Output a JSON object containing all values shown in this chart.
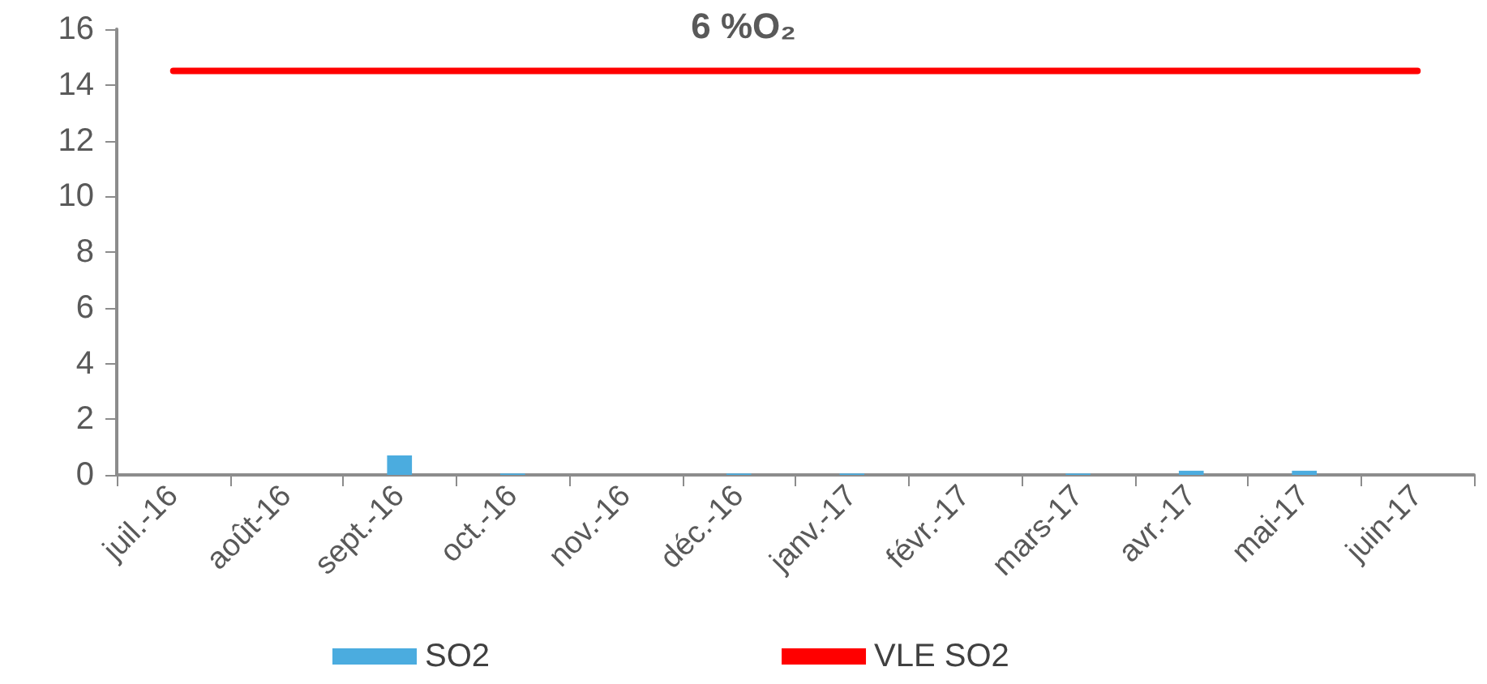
{
  "chart_data": {
    "type": "bar",
    "title": "6 %O₂",
    "categories": [
      "juil.-16",
      "août-16",
      "sept.-16",
      "oct.-16",
      "nov.-16",
      "déc.-16",
      "janv.-17",
      "févr.-17",
      "mars-17",
      "avr.-17",
      "mai-17",
      "juin-17"
    ],
    "series": [
      {
        "name": "SO2",
        "color": "#4bacdf",
        "values": [
          0,
          0,
          0.7,
          0.05,
          0,
          0.05,
          0.05,
          0,
          0.05,
          0.15,
          0.15,
          0
        ]
      },
      {
        "name": "VLE SO2",
        "type": "line",
        "color": "#ff0000",
        "values": [
          14.5,
          14.5,
          14.5,
          14.5,
          14.5,
          14.5,
          14.5,
          14.5,
          14.5,
          14.5,
          14.5,
          14.5
        ]
      }
    ],
    "ylim": [
      0,
      16
    ],
    "yticks": [
      0,
      2,
      4,
      6,
      8,
      10,
      12,
      14,
      16
    ],
    "grid": false,
    "legend": "bottom",
    "marker": "none"
  }
}
